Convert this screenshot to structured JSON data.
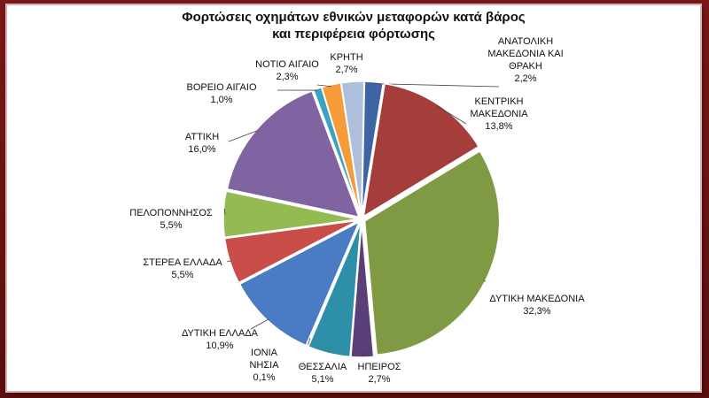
{
  "chart_data": {
    "type": "pie",
    "title_lines": [
      "Φορτώσεις οχημάτων εθνικών μεταφορών κατά βάρος",
      "και περιφέρεια φόρτωσης"
    ],
    "slices": [
      {
        "label_lines": [
          "ΑΝΑΤΟΛΙΚΗ",
          "ΜΑΚΕΔΟΝΙΑ ΚΑΙ",
          "ΘΡΑΚΗ"
        ],
        "value": 2.2,
        "value_label": "2,2%",
        "color": "#3e64a4"
      },
      {
        "label_lines": [
          "ΚΕΝΤΡΙΚΗ",
          "ΜΑΚΕΔΟΝΙΑ"
        ],
        "value": 13.8,
        "value_label": "13,8%",
        "color": "#a33e3b"
      },
      {
        "label_lines": [
          "ΔΥΤΙΚΗ ΜΑΚΕΔΟΝΙΑ"
        ],
        "value": 32.3,
        "value_label": "32,3%",
        "color": "#7f9a42"
      },
      {
        "label_lines": [
          "ΗΠΕΙΡΟΣ"
        ],
        "value": 2.7,
        "value_label": "2,7%",
        "color": "#5a3f78"
      },
      {
        "label_lines": [
          "ΘΕΣΣΑΛΙΑ"
        ],
        "value": 5.1,
        "value_label": "5,1%",
        "color": "#2e8fa8"
      },
      {
        "label_lines": [
          "ΙΟΝΙΑ",
          "ΝΗΣΙΑ"
        ],
        "value": 0.1,
        "value_label": "0,1%",
        "color": "#e08a2e"
      },
      {
        "label_lines": [
          "ΔΥΤΙΚΗ ΕΛΛΑΔΑ"
        ],
        "value": 10.9,
        "value_label": "10,9%",
        "color": "#4a7cc4"
      },
      {
        "label_lines": [
          "ΣΤΕΡΕΑ ΕΛΛΑΔΑ"
        ],
        "value": 5.5,
        "value_label": "5,5%",
        "color": "#c94e4a"
      },
      {
        "label_lines": [
          "ΠΕΛΟΠΟΝΝΗΣΟΣ"
        ],
        "value": 5.5,
        "value_label": "5,5%",
        "color": "#93bb52"
      },
      {
        "label_lines": [
          "ΑΤΤΙΚΗ"
        ],
        "value": 16.0,
        "value_label": "16,0%",
        "color": "#8064a2"
      },
      {
        "label_lines": [
          "ΒΟΡΕΙΟ ΑΙΓΑΙΟ"
        ],
        "value": 1.0,
        "value_label": "1,0%",
        "color": "#3aa3c4"
      },
      {
        "label_lines": [
          "ΝΟΤΙΟ ΑΙΓΑΙΟ"
        ],
        "value": 2.3,
        "value_label": "2,3%",
        "color": "#f59b3a"
      },
      {
        "label_lines": [
          "ΚΡΗΤΗ"
        ],
        "value": 2.7,
        "value_label": "2,7%",
        "color": "#aebfdc"
      }
    ]
  }
}
